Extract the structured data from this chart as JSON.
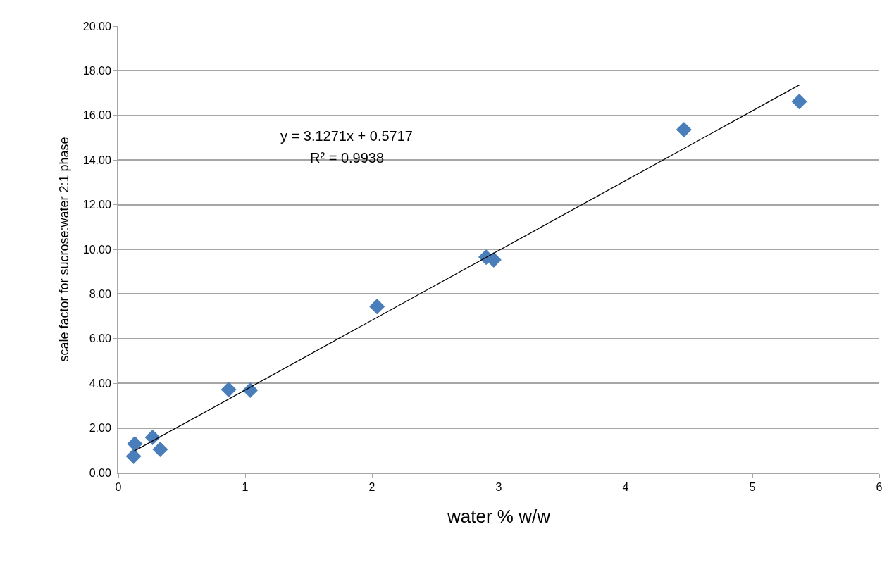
{
  "chart_data": {
    "type": "scatter",
    "xlabel": "water % w/w",
    "ylabel": "scale factor for sucrose:water 2:1 phase",
    "series": [
      {
        "color": "#4a7ebb",
        "marker": "diamond",
        "x": [
          0.12,
          0.13,
          0.27,
          0.33,
          0.87,
          1.04,
          2.04,
          2.9,
          2.96,
          4.46,
          5.37
        ],
        "values": [
          0.73,
          1.29,
          1.58,
          1.04,
          3.72,
          3.69,
          7.44,
          9.65,
          9.53,
          15.36,
          16.62
        ]
      },
      {
        "type": "line",
        "color": "#000000",
        "marker": "none",
        "x": [
          0.12,
          5.37
        ],
        "values": [
          0.95,
          17.36
        ]
      }
    ],
    "annotations": [
      "y = 3.1271x + 0.5717",
      "R² = 0.9938"
    ],
    "xlim": [
      0,
      6
    ],
    "xticks": [
      0,
      1,
      2,
      3,
      4,
      5,
      6
    ],
    "ylim": [
      0,
      20
    ],
    "yticks": [
      {
        "value": 0,
        "label": "0.00"
      },
      {
        "value": 2,
        "label": "2.00"
      },
      {
        "value": 4,
        "label": "4.00"
      },
      {
        "value": 6,
        "label": "6.00"
      },
      {
        "value": 8,
        "label": "8.00"
      },
      {
        "value": 10,
        "label": "10.00"
      },
      {
        "value": 12,
        "label": "12.00"
      },
      {
        "value": 14,
        "label": "14.00"
      },
      {
        "value": 16,
        "label": "16.00"
      },
      {
        "value": 18,
        "label": "18.00"
      },
      {
        "value": 20,
        "label": "20.00"
      }
    ],
    "grid": "y"
  }
}
